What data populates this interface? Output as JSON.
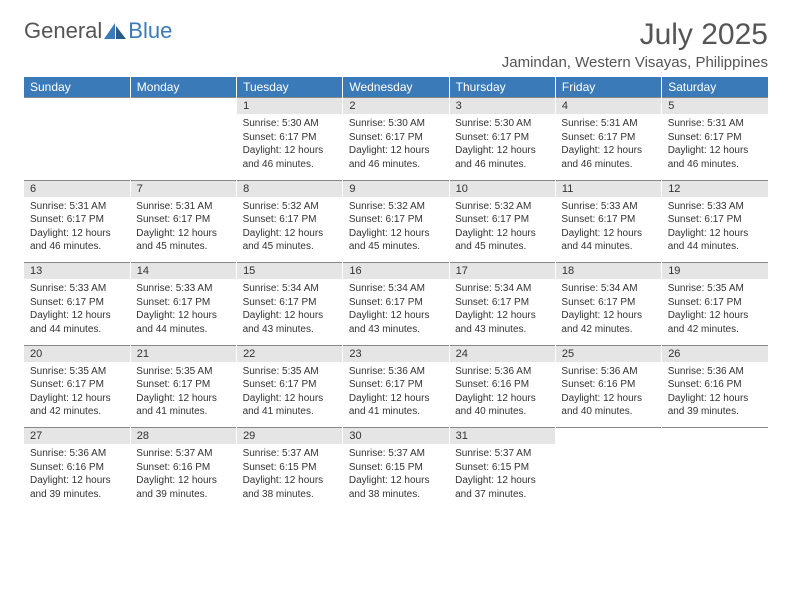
{
  "brand": {
    "text1": "General",
    "text2": "Blue"
  },
  "title": "July 2025",
  "location": "Jamindan, Western Visayas, Philippines",
  "header_bg": "#3a7ab8",
  "header_fg": "#ffffff",
  "daynum_bg": "#e5e5e5",
  "text_color": "#333333",
  "font_family": "Arial, Helvetica, sans-serif",
  "columns": [
    "Sunday",
    "Monday",
    "Tuesday",
    "Wednesday",
    "Thursday",
    "Friday",
    "Saturday"
  ],
  "weeks": [
    {
      "nums": [
        "",
        "",
        "1",
        "2",
        "3",
        "4",
        "5"
      ],
      "cells": [
        null,
        null,
        {
          "sunrise": "Sunrise: 5:30 AM",
          "sunset": "Sunset: 6:17 PM",
          "day1": "Daylight: 12 hours",
          "day2": "and 46 minutes."
        },
        {
          "sunrise": "Sunrise: 5:30 AM",
          "sunset": "Sunset: 6:17 PM",
          "day1": "Daylight: 12 hours",
          "day2": "and 46 minutes."
        },
        {
          "sunrise": "Sunrise: 5:30 AM",
          "sunset": "Sunset: 6:17 PM",
          "day1": "Daylight: 12 hours",
          "day2": "and 46 minutes."
        },
        {
          "sunrise": "Sunrise: 5:31 AM",
          "sunset": "Sunset: 6:17 PM",
          "day1": "Daylight: 12 hours",
          "day2": "and 46 minutes."
        },
        {
          "sunrise": "Sunrise: 5:31 AM",
          "sunset": "Sunset: 6:17 PM",
          "day1": "Daylight: 12 hours",
          "day2": "and 46 minutes."
        }
      ]
    },
    {
      "nums": [
        "6",
        "7",
        "8",
        "9",
        "10",
        "11",
        "12"
      ],
      "cells": [
        {
          "sunrise": "Sunrise: 5:31 AM",
          "sunset": "Sunset: 6:17 PM",
          "day1": "Daylight: 12 hours",
          "day2": "and 46 minutes."
        },
        {
          "sunrise": "Sunrise: 5:31 AM",
          "sunset": "Sunset: 6:17 PM",
          "day1": "Daylight: 12 hours",
          "day2": "and 45 minutes."
        },
        {
          "sunrise": "Sunrise: 5:32 AM",
          "sunset": "Sunset: 6:17 PM",
          "day1": "Daylight: 12 hours",
          "day2": "and 45 minutes."
        },
        {
          "sunrise": "Sunrise: 5:32 AM",
          "sunset": "Sunset: 6:17 PM",
          "day1": "Daylight: 12 hours",
          "day2": "and 45 minutes."
        },
        {
          "sunrise": "Sunrise: 5:32 AM",
          "sunset": "Sunset: 6:17 PM",
          "day1": "Daylight: 12 hours",
          "day2": "and 45 minutes."
        },
        {
          "sunrise": "Sunrise: 5:33 AM",
          "sunset": "Sunset: 6:17 PM",
          "day1": "Daylight: 12 hours",
          "day2": "and 44 minutes."
        },
        {
          "sunrise": "Sunrise: 5:33 AM",
          "sunset": "Sunset: 6:17 PM",
          "day1": "Daylight: 12 hours",
          "day2": "and 44 minutes."
        }
      ]
    },
    {
      "nums": [
        "13",
        "14",
        "15",
        "16",
        "17",
        "18",
        "19"
      ],
      "cells": [
        {
          "sunrise": "Sunrise: 5:33 AM",
          "sunset": "Sunset: 6:17 PM",
          "day1": "Daylight: 12 hours",
          "day2": "and 44 minutes."
        },
        {
          "sunrise": "Sunrise: 5:33 AM",
          "sunset": "Sunset: 6:17 PM",
          "day1": "Daylight: 12 hours",
          "day2": "and 44 minutes."
        },
        {
          "sunrise": "Sunrise: 5:34 AM",
          "sunset": "Sunset: 6:17 PM",
          "day1": "Daylight: 12 hours",
          "day2": "and 43 minutes."
        },
        {
          "sunrise": "Sunrise: 5:34 AM",
          "sunset": "Sunset: 6:17 PM",
          "day1": "Daylight: 12 hours",
          "day2": "and 43 minutes."
        },
        {
          "sunrise": "Sunrise: 5:34 AM",
          "sunset": "Sunset: 6:17 PM",
          "day1": "Daylight: 12 hours",
          "day2": "and 43 minutes."
        },
        {
          "sunrise": "Sunrise: 5:34 AM",
          "sunset": "Sunset: 6:17 PM",
          "day1": "Daylight: 12 hours",
          "day2": "and 42 minutes."
        },
        {
          "sunrise": "Sunrise: 5:35 AM",
          "sunset": "Sunset: 6:17 PM",
          "day1": "Daylight: 12 hours",
          "day2": "and 42 minutes."
        }
      ]
    },
    {
      "nums": [
        "20",
        "21",
        "22",
        "23",
        "24",
        "25",
        "26"
      ],
      "cells": [
        {
          "sunrise": "Sunrise: 5:35 AM",
          "sunset": "Sunset: 6:17 PM",
          "day1": "Daylight: 12 hours",
          "day2": "and 42 minutes."
        },
        {
          "sunrise": "Sunrise: 5:35 AM",
          "sunset": "Sunset: 6:17 PM",
          "day1": "Daylight: 12 hours",
          "day2": "and 41 minutes."
        },
        {
          "sunrise": "Sunrise: 5:35 AM",
          "sunset": "Sunset: 6:17 PM",
          "day1": "Daylight: 12 hours",
          "day2": "and 41 minutes."
        },
        {
          "sunrise": "Sunrise: 5:36 AM",
          "sunset": "Sunset: 6:17 PM",
          "day1": "Daylight: 12 hours",
          "day2": "and 41 minutes."
        },
        {
          "sunrise": "Sunrise: 5:36 AM",
          "sunset": "Sunset: 6:16 PM",
          "day1": "Daylight: 12 hours",
          "day2": "and 40 minutes."
        },
        {
          "sunrise": "Sunrise: 5:36 AM",
          "sunset": "Sunset: 6:16 PM",
          "day1": "Daylight: 12 hours",
          "day2": "and 40 minutes."
        },
        {
          "sunrise": "Sunrise: 5:36 AM",
          "sunset": "Sunset: 6:16 PM",
          "day1": "Daylight: 12 hours",
          "day2": "and 39 minutes."
        }
      ]
    },
    {
      "nums": [
        "27",
        "28",
        "29",
        "30",
        "31",
        "",
        ""
      ],
      "cells": [
        {
          "sunrise": "Sunrise: 5:36 AM",
          "sunset": "Sunset: 6:16 PM",
          "day1": "Daylight: 12 hours",
          "day2": "and 39 minutes."
        },
        {
          "sunrise": "Sunrise: 5:37 AM",
          "sunset": "Sunset: 6:16 PM",
          "day1": "Daylight: 12 hours",
          "day2": "and 39 minutes."
        },
        {
          "sunrise": "Sunrise: 5:37 AM",
          "sunset": "Sunset: 6:15 PM",
          "day1": "Daylight: 12 hours",
          "day2": "and 38 minutes."
        },
        {
          "sunrise": "Sunrise: 5:37 AM",
          "sunset": "Sunset: 6:15 PM",
          "day1": "Daylight: 12 hours",
          "day2": "and 38 minutes."
        },
        {
          "sunrise": "Sunrise: 5:37 AM",
          "sunset": "Sunset: 6:15 PM",
          "day1": "Daylight: 12 hours",
          "day2": "and 37 minutes."
        },
        null,
        null
      ]
    }
  ]
}
